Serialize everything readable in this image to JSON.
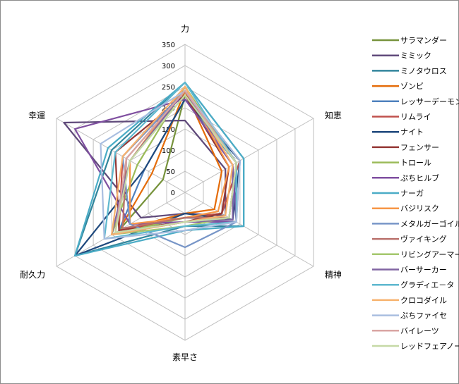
{
  "chart_data": {
    "type": "radar",
    "axes": [
      "力",
      "知恵",
      "精神",
      "素早さ",
      "耐久力",
      "幸運"
    ],
    "ticks": [
      "0",
      "50",
      "100",
      "150",
      "200",
      "250",
      "300",
      "350"
    ],
    "rlim": [
      0,
      350
    ],
    "grid": true,
    "legend_position": "right",
    "series": [
      {
        "name": "サラマンダー",
        "color": "#77933c",
        "values": [
          230,
          150,
          100,
          60,
          180,
          60
        ]
      },
      {
        "name": "ミミック",
        "color": "#5f497a",
        "values": [
          170,
          110,
          110,
          50,
          120,
          330
        ]
      },
      {
        "name": "ミノタウロス",
        "color": "#31859c",
        "values": [
          260,
          160,
          160,
          80,
          300,
          200
        ]
      },
      {
        "name": "ゾンビ",
        "color": "#e46c0a",
        "values": [
          240,
          100,
          80,
          50,
          180,
          90
        ]
      },
      {
        "name": "レッサーデーモン",
        "color": "#4f81bd",
        "values": [
          220,
          140,
          130,
          60,
          180,
          110
        ]
      },
      {
        "name": "リムライ",
        "color": "#c0504d",
        "values": [
          240,
          150,
          100,
          60,
          180,
          170
        ]
      },
      {
        "name": "ナイト",
        "color": "#1f497d",
        "values": [
          220,
          150,
          130,
          50,
          300,
          110
        ]
      },
      {
        "name": "フェンサー",
        "color": "#943634",
        "values": [
          230,
          120,
          100,
          70,
          180,
          190
        ]
      },
      {
        "name": "トロール",
        "color": "#9bbb59",
        "values": [
          250,
          140,
          120,
          60,
          200,
          130
        ]
      },
      {
        "name": "ぷちヒルブ",
        "color": "#7f4fa0",
        "values": [
          220,
          130,
          140,
          70,
          150,
          300
        ]
      },
      {
        "name": "ナーガ",
        "color": "#4bacc6",
        "values": [
          260,
          160,
          160,
          90,
          300,
          210
        ]
      },
      {
        "name": "バジリスク",
        "color": "#f79646",
        "values": [
          250,
          120,
          90,
          60,
          150,
          150
        ]
      },
      {
        "name": "メタルガーゴイル",
        "color": "#7795c7",
        "values": [
          240,
          150,
          140,
          130,
          150,
          170
        ]
      },
      {
        "name": "ヴァイキング",
        "color": "#b9706b",
        "values": [
          240,
          140,
          120,
          60,
          170,
          160
        ]
      },
      {
        "name": "リビングアーマー",
        "color": "#a5c86f",
        "values": [
          230,
          140,
          120,
          80,
          200,
          150
        ]
      },
      {
        "name": "バーサーカー",
        "color": "#8064a2",
        "values": [
          240,
          130,
          130,
          70,
          200,
          150
        ]
      },
      {
        "name": "グラディエ－タ",
        "color": "#5fb8cf",
        "values": [
          260,
          140,
          140,
          80,
          220,
          190
        ]
      },
      {
        "name": "クロコダイル",
        "color": "#f7b26d",
        "values": [
          250,
          130,
          110,
          70,
          200,
          170
        ]
      },
      {
        "name": "ぷちファイセ",
        "color": "#a9bee0",
        "values": [
          240,
          150,
          140,
          90,
          220,
          230
        ]
      },
      {
        "name": "バイレーツ",
        "color": "#d9a5a3",
        "values": [
          240,
          140,
          120,
          70,
          190,
          160
        ]
      },
      {
        "name": "レッドフェアノー",
        "color": "#c6d9a6",
        "values": [
          230,
          140,
          120,
          70,
          190,
          150
        ]
      }
    ]
  }
}
